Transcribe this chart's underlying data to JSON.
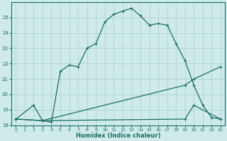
{
  "xlabel": "Humidex (Indice chaleur)",
  "background_color": "#ceeaea",
  "grid_color": "#a8cccc",
  "line_color": "#1a6e62",
  "xlim": [
    -0.5,
    23.5
  ],
  "ylim": [
    18,
    26
  ],
  "xticks": [
    0,
    1,
    2,
    3,
    4,
    5,
    6,
    7,
    8,
    9,
    10,
    11,
    12,
    13,
    14,
    15,
    16,
    17,
    18,
    19,
    20,
    21,
    22,
    23
  ],
  "yticks": [
    18,
    19,
    20,
    21,
    22,
    23,
    24,
    25
  ],
  "line1_x": [
    0,
    2,
    3,
    4,
    5,
    6,
    7,
    8,
    9,
    10,
    11,
    12,
    13,
    14,
    15,
    16,
    17,
    18,
    19,
    20,
    21,
    22,
    23
  ],
  "line1_y": [
    18.4,
    19.3,
    18.3,
    18.2,
    21.5,
    21.9,
    21.8,
    23.0,
    23.3,
    24.7,
    25.2,
    25.4,
    25.6,
    25.1,
    24.5,
    24.6,
    24.5,
    23.3,
    22.2,
    20.6,
    19.3,
    18.5,
    18.4
  ],
  "line2_x": [
    0,
    3,
    19,
    20,
    23
  ],
  "line2_y": [
    18.4,
    18.3,
    20.6,
    21.0,
    21.8
  ],
  "line3_x": [
    0,
    3,
    19,
    20,
    23
  ],
  "line3_y": [
    18.4,
    18.3,
    18.4,
    19.3,
    18.4
  ]
}
